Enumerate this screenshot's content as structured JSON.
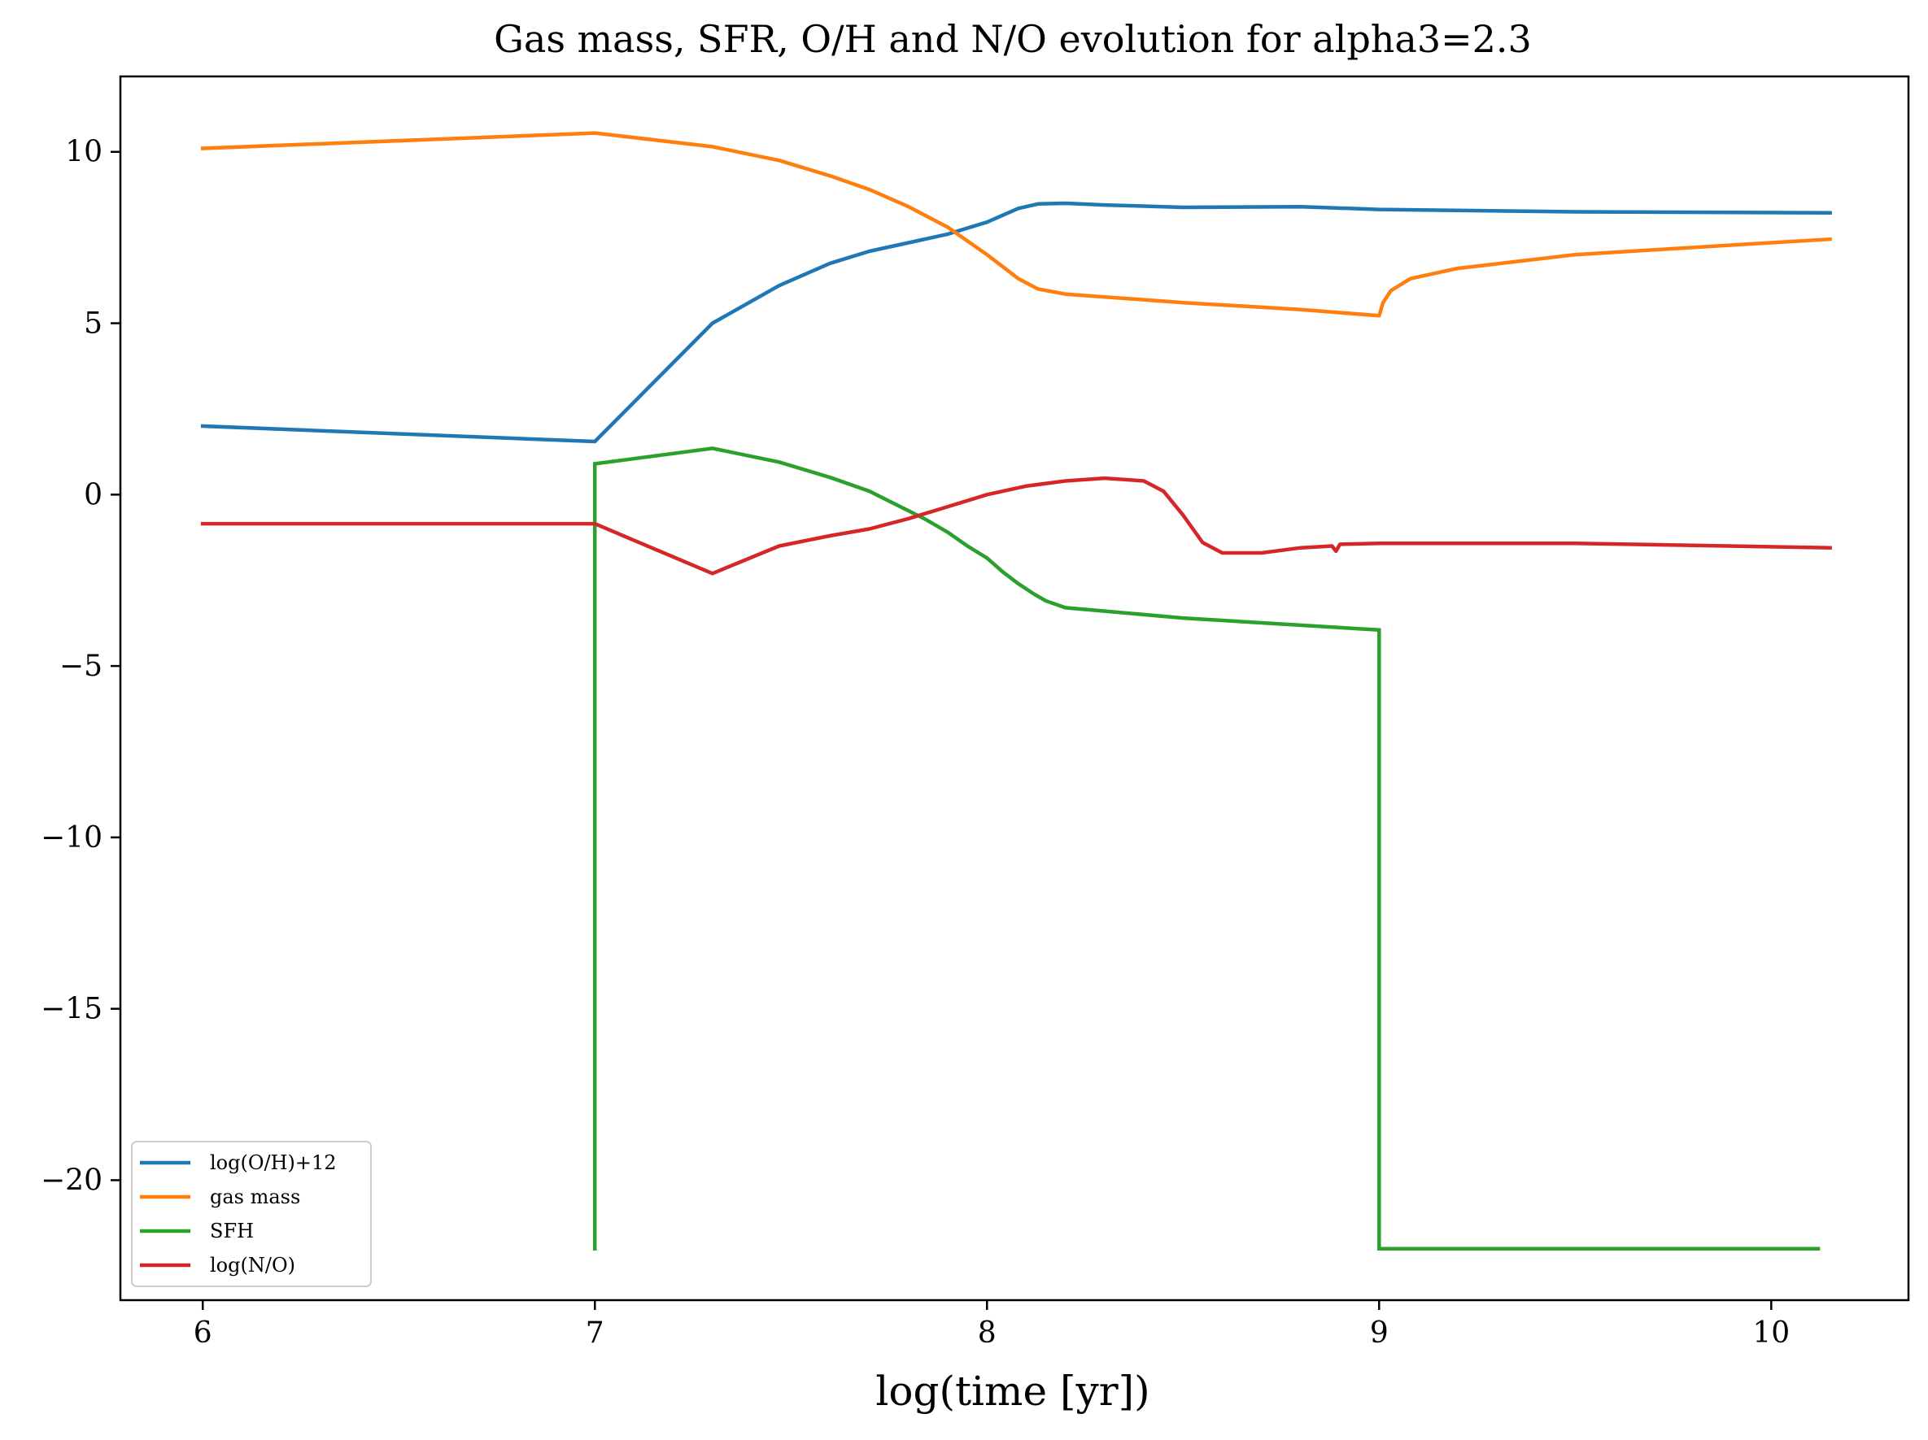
{
  "chart_data": {
    "type": "line",
    "title": "Gas mass, SFR, O/H and N/O evolution for alpha3=2.3",
    "xlabel": "log(time [yr])",
    "ylabel": "",
    "xlim": [
      5.79,
      10.35
    ],
    "ylim": [
      -23.5,
      12.2
    ],
    "xticks": [
      6,
      7,
      8,
      9,
      10
    ],
    "xtick_labels": [
      "6",
      "7",
      "8",
      "9",
      "10"
    ],
    "yticks": [
      10,
      5,
      0,
      -5,
      -10,
      -15,
      -20
    ],
    "ytick_labels": [
      "10",
      "5",
      "0",
      "−5",
      "−10",
      "−15",
      "−20"
    ],
    "grid": false,
    "legend_position": "lower-left",
    "series": [
      {
        "name": "log(O/H)+12",
        "color": "#1f77b4",
        "points": [
          [
            6.0,
            2.0
          ],
          [
            7.0,
            1.55
          ],
          [
            7.3,
            5.0
          ],
          [
            7.47,
            6.1
          ],
          [
            7.6,
            6.75
          ],
          [
            7.7,
            7.1
          ],
          [
            7.8,
            7.35
          ],
          [
            7.9,
            7.6
          ],
          [
            8.0,
            7.95
          ],
          [
            8.08,
            8.35
          ],
          [
            8.13,
            8.48
          ],
          [
            8.2,
            8.5
          ],
          [
            8.3,
            8.45
          ],
          [
            8.5,
            8.38
          ],
          [
            8.8,
            8.4
          ],
          [
            9.0,
            8.32
          ],
          [
            9.5,
            8.25
          ],
          [
            10.15,
            8.22
          ]
        ]
      },
      {
        "name": "gas mass",
        "color": "#ff7f0e",
        "points": [
          [
            6.0,
            10.1
          ],
          [
            7.0,
            10.55
          ],
          [
            7.3,
            10.15
          ],
          [
            7.47,
            9.75
          ],
          [
            7.6,
            9.3
          ],
          [
            7.7,
            8.9
          ],
          [
            7.8,
            8.4
          ],
          [
            7.9,
            7.8
          ],
          [
            8.0,
            7.0
          ],
          [
            8.08,
            6.3
          ],
          [
            8.13,
            6.0
          ],
          [
            8.2,
            5.85
          ],
          [
            8.5,
            5.6
          ],
          [
            8.8,
            5.4
          ],
          [
            9.0,
            5.22
          ],
          [
            9.01,
            5.6
          ],
          [
            9.03,
            5.95
          ],
          [
            9.08,
            6.3
          ],
          [
            9.2,
            6.6
          ],
          [
            9.5,
            7.0
          ],
          [
            10.0,
            7.35
          ],
          [
            10.15,
            7.45
          ]
        ]
      },
      {
        "name": "SFH",
        "color": "#2ca02c",
        "step": true,
        "points": [
          [
            7.0,
            -22.0
          ],
          [
            7.0,
            0.9
          ],
          [
            7.3,
            1.35
          ],
          [
            7.47,
            0.95
          ],
          [
            7.6,
            0.5
          ],
          [
            7.7,
            0.1
          ],
          [
            7.77,
            -0.3
          ],
          [
            7.84,
            -0.7
          ],
          [
            7.9,
            -1.1
          ],
          [
            7.95,
            -1.5
          ],
          [
            8.0,
            -1.85
          ],
          [
            8.04,
            -2.25
          ],
          [
            8.08,
            -2.6
          ],
          [
            8.12,
            -2.9
          ],
          [
            8.15,
            -3.1
          ],
          [
            8.2,
            -3.3
          ],
          [
            8.5,
            -3.6
          ],
          [
            9.0,
            -3.95
          ],
          [
            9.0,
            -22.0
          ],
          [
            10.12,
            -22.0
          ]
        ]
      },
      {
        "name": "log(N/O)",
        "color": "#d62728",
        "points": [
          [
            6.0,
            -0.85
          ],
          [
            7.0,
            -0.85
          ],
          [
            7.3,
            -2.3
          ],
          [
            7.47,
            -1.5
          ],
          [
            7.6,
            -1.2
          ],
          [
            7.7,
            -1.0
          ],
          [
            7.8,
            -0.7
          ],
          [
            7.9,
            -0.35
          ],
          [
            8.0,
            0.0
          ],
          [
            8.1,
            0.25
          ],
          [
            8.2,
            0.4
          ],
          [
            8.3,
            0.48
          ],
          [
            8.4,
            0.4
          ],
          [
            8.45,
            0.1
          ],
          [
            8.5,
            -0.6
          ],
          [
            8.55,
            -1.4
          ],
          [
            8.6,
            -1.7
          ],
          [
            8.7,
            -1.7
          ],
          [
            8.8,
            -1.55
          ],
          [
            8.88,
            -1.5
          ],
          [
            8.89,
            -1.65
          ],
          [
            8.9,
            -1.45
          ],
          [
            9.0,
            -1.42
          ],
          [
            9.5,
            -1.42
          ],
          [
            10.15,
            -1.55
          ]
        ]
      }
    ]
  }
}
